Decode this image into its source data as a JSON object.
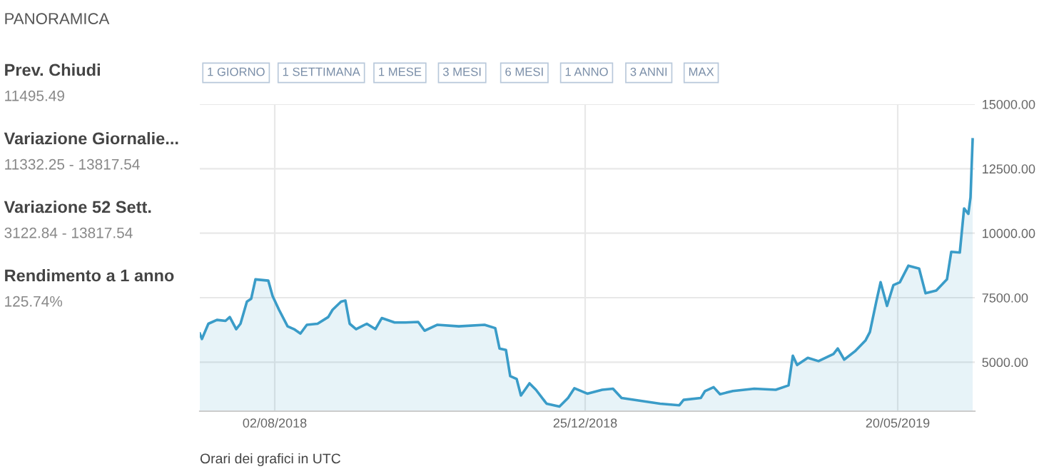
{
  "chart_data": [
    {
      "type": "other",
      "title": "PANORAMICA",
      "annotations": [
        "Prev. Chiudi",
        "11495.49",
        "Variazione Giornalie...",
        "11332.25 - 13817.54",
        "Variazione 52 Sett.",
        "3122.84 - 13817.54",
        "Rendimento a 1 anno",
        "125.74%"
      ]
    },
    {
      "type": "area",
      "annotations": [
        "1 GIORNO",
        "1 SETTIMANA",
        "1 MESE",
        "3 MESI",
        "6 MESI",
        "1 ANNO",
        "3 ANNI",
        "MAX",
        "Orari dei grafici in UTC"
      ],
      "x": [
        "2018-06-28",
        "2018-06-29",
        "2018-07-02",
        "2018-07-06",
        "2018-07-10",
        "2018-07-12",
        "2018-07-15",
        "2018-07-17",
        "2018-07-20",
        "2018-07-22",
        "2018-07-24",
        "2018-07-30",
        "2018-08-01",
        "2018-08-04",
        "2018-08-08",
        "2018-08-11",
        "2018-08-14",
        "2018-08-17",
        "2018-08-22",
        "2018-08-27",
        "2018-08-29",
        "2018-09-02",
        "2018-09-04",
        "2018-09-06",
        "2018-09-09",
        "2018-09-14",
        "2018-09-18",
        "2018-09-21",
        "2018-09-27",
        "2018-10-02",
        "2018-10-08",
        "2018-10-11",
        "2018-10-17",
        "2018-10-27",
        "2018-11-08",
        "2018-11-13",
        "2018-11-15",
        "2018-11-18",
        "2018-11-20",
        "2018-11-23",
        "2018-11-25",
        "2018-11-29",
        "2018-12-02",
        "2018-12-07",
        "2018-12-13",
        "2018-12-17",
        "2018-12-20",
        "2018-12-26",
        "2019-01-02",
        "2019-01-07",
        "2019-01-11",
        "2019-01-20",
        "2019-01-29",
        "2019-02-07",
        "2019-02-09",
        "2019-02-17",
        "2019-02-19",
        "2019-02-23",
        "2019-02-26",
        "2019-03-04",
        "2019-03-14",
        "2019-03-24",
        "2019-03-30",
        "2019-04-01",
        "2019-04-03",
        "2019-04-08",
        "2019-04-13",
        "2019-04-20",
        "2019-04-22",
        "2019-04-25",
        "2019-04-30",
        "2019-05-05",
        "2019-05-07",
        "2019-05-10",
        "2019-05-12",
        "2019-05-15",
        "2019-05-18",
        "2019-05-21",
        "2019-05-25",
        "2019-05-30",
        "2019-06-02",
        "2019-06-07",
        "2019-06-12",
        "2019-06-14",
        "2019-06-18",
        "2019-06-20",
        "2019-06-22",
        "2019-06-23",
        "2019-06-24"
      ],
      "series": [
        {
          "color": "#3a9cc8",
          "values": [
            6110,
            5900,
            6490,
            6640,
            6600,
            6750,
            6280,
            6490,
            7350,
            7460,
            8210,
            8160,
            7560,
            7030,
            6390,
            6280,
            6110,
            6450,
            6490,
            6750,
            7030,
            7350,
            7390,
            6490,
            6280,
            6490,
            6280,
            6710,
            6540,
            6540,
            6560,
            6220,
            6450,
            6390,
            6450,
            6320,
            5530,
            5470,
            4460,
            4350,
            3710,
            4180,
            3930,
            3390,
            3280,
            3610,
            3990,
            3780,
            3930,
            3970,
            3610,
            3500,
            3390,
            3330,
            3540,
            3610,
            3880,
            4030,
            3760,
            3880,
            3970,
            3930,
            4100,
            5250,
            4890,
            5170,
            5040,
            5320,
            5530,
            5100,
            5420,
            5850,
            6170,
            7350,
            8100,
            7180,
            7990,
            8100,
            8740,
            8630,
            7670,
            7780,
            8210,
            9280,
            9250,
            10960,
            10750,
            11390,
            13640
          ]
        }
      ],
      "xlim": [
        "2018-06-28",
        "2019-06-25"
      ],
      "xticks": [
        {
          "value": "2018-08-02",
          "label": "02/08/2018"
        },
        {
          "value": "2018-12-25",
          "label": "25/12/2018"
        },
        {
          "value": "2019-05-20",
          "label": "20/05/2019"
        }
      ],
      "ylim": [
        3100,
        15000
      ],
      "yticks": [
        {
          "value": 5000,
          "label": "5000.00"
        },
        {
          "value": 7500,
          "label": "7500.00"
        },
        {
          "value": 10000,
          "label": "10000.00"
        },
        {
          "value": 12500,
          "label": "12500.00"
        },
        {
          "value": 15000,
          "label": "15000.00"
        }
      ],
      "grid": true
    }
  ]
}
